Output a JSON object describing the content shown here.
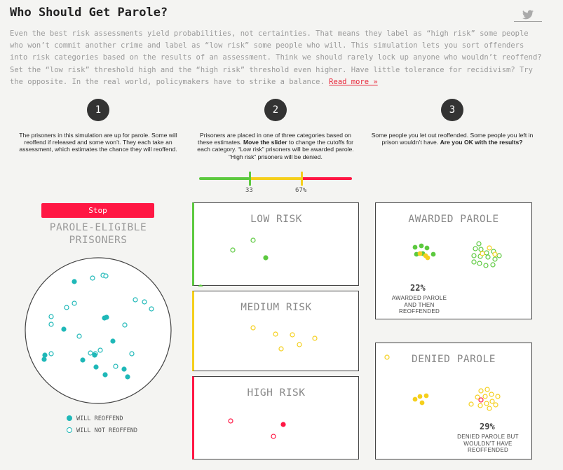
{
  "header": {
    "title": "Who Should Get Parole?",
    "share_icon": "twitter-icon"
  },
  "intro": {
    "text": "Even the best risk assessments yield probabilities, not certainties. That means they label as “high risk” some people who won’t commit another crime and label as “low risk” some people who will. This simulation lets you sort offenders into risk categories based on the results of an assessment. Think we should rarely lock up anyone who wouldn’t reoffend? Set the “low risk” threshold high and the “high risk” threshold even higher. Have little tolerance for recidivism? Try the opposite. In the real world, policymakers have to strike a balance.",
    "read_more": "Read more »"
  },
  "steps": [
    {
      "number": "1",
      "text": "The prisoners in this simulation are up for parole. Some will reoffend if released and some won’t. They each take an assessment, which estimates the chance they will reoffend.",
      "bold": "",
      "text_after": ""
    },
    {
      "number": "2",
      "text": "Prisoners are placed in one of three categories based on these estimates. ",
      "bold": "Move the slider",
      "text_after": " to change the cutoffs for each category. “Low risk” prisoners will be awarded parole. “High risk” prisoners will be denied."
    },
    {
      "number": "3",
      "text": "Some people you let out reoffended. Some people you left in prison wouldn’t have. ",
      "bold": "Are you OK with the results?",
      "text_after": ""
    }
  ],
  "slider": {
    "low_cutoff": 33,
    "high_cutoff": 67,
    "low_label": "33",
    "high_label": "67%",
    "colors": {
      "low": "#5cc93f",
      "medium": "#f5cf1c",
      "high": "#ff1744"
    }
  },
  "controls": {
    "stop_label": "Stop"
  },
  "pool": {
    "title": "PAROLE-ELIGIBLE PRISONERS",
    "color": "#1fb8b8",
    "legend": {
      "reoffend": "WILL REOFFEND",
      "not_reoffend": "WILL NOT REOFFEND"
    }
  },
  "categories": {
    "low": {
      "title": "LOW RISK",
      "color": "#5cc93f"
    },
    "medium": {
      "title": "MEDIUM RISK",
      "color": "#f5cf1c"
    },
    "high": {
      "title": "HIGH RISK",
      "color": "#ff1744"
    }
  },
  "results": {
    "awarded": {
      "title": "AWARDED PAROLE",
      "percent": "22%",
      "label": "AWARDED PAROLE AND THEN REOFFENDED"
    },
    "denied": {
      "title": "DENIED PAROLE",
      "percent": "29%",
      "label": "DENIED PAROLE BUT WOULDN’T HAVE REOFFENDED"
    }
  }
}
